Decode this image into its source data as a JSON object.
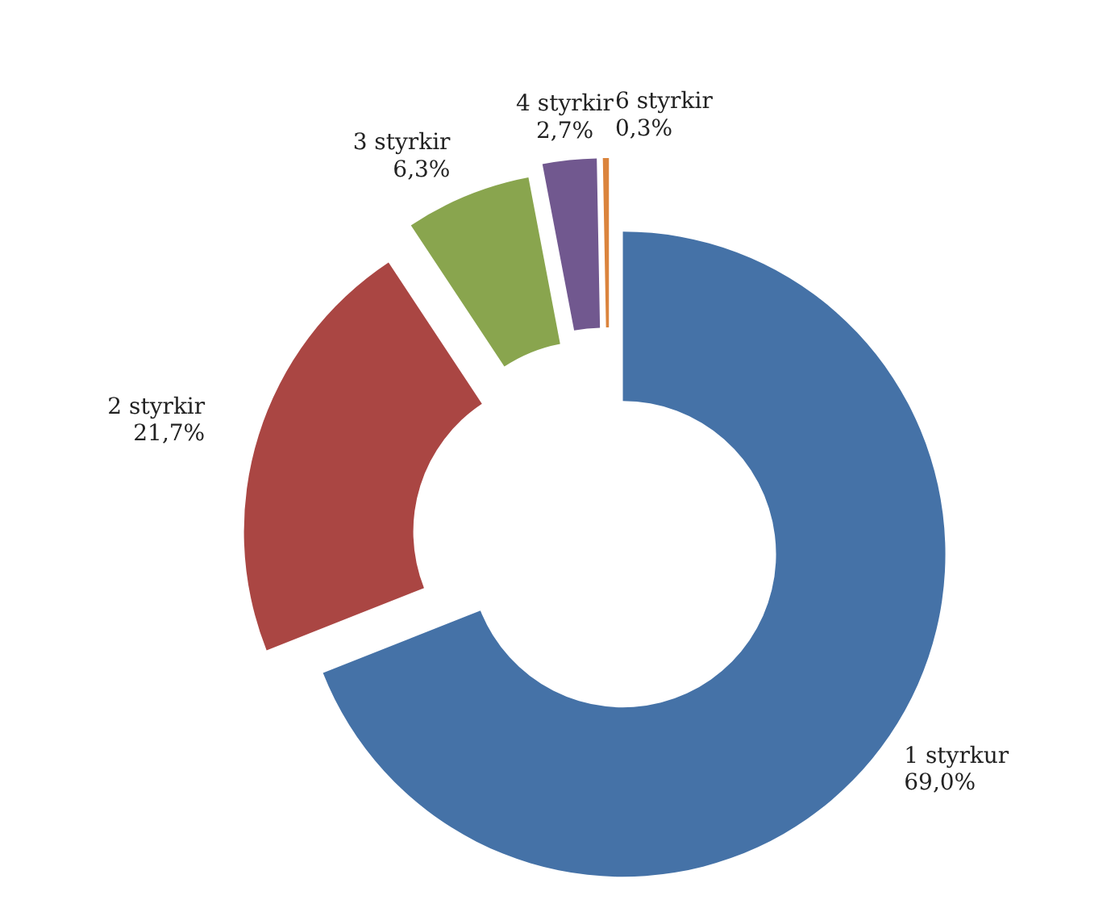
{
  "chart_data": {
    "type": "donut",
    "categories": [
      "1 styrkur",
      "2 styrkir",
      "3 styrkir",
      "4 styrkir",
      "6 styrkir"
    ],
    "values": [
      69.0,
      21.7,
      6.3,
      2.7,
      0.3
    ],
    "colors": [
      "#4572a7",
      "#aa4643",
      "#89a54e",
      "#71588f",
      "#db843d"
    ],
    "data_labels": true,
    "value_labels": [
      "69,0%",
      "21,7%",
      "6,3%",
      "2,7%",
      "0,3%"
    ],
    "legend": false
  }
}
